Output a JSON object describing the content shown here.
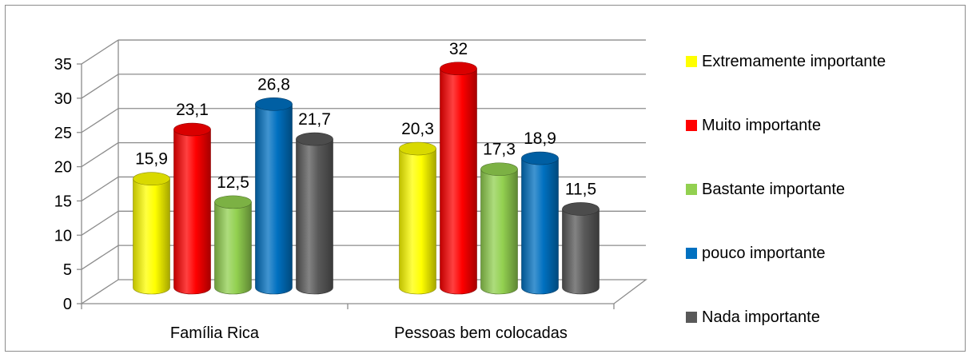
{
  "chart_data": {
    "type": "bar",
    "categories": [
      "Família Rica",
      "Pessoas bem colocadas"
    ],
    "series": [
      {
        "name": "Extremamente importante",
        "values": [
          15.9,
          20.3
        ],
        "labels": [
          "15,9",
          "20,3"
        ],
        "color": "#ffff00"
      },
      {
        "name": "Muito importante",
        "values": [
          23.1,
          32
        ],
        "labels": [
          "23,1",
          "32"
        ],
        "color": "#ff0000"
      },
      {
        "name": "Bastante importante",
        "values": [
          12.5,
          17.3
        ],
        "labels": [
          "12,5",
          "17,3"
        ],
        "color": "#92d050"
      },
      {
        "name": "pouco importante",
        "values": [
          26.8,
          18.9
        ],
        "labels": [
          "26,8",
          "18,9"
        ],
        "color": "#0070c0"
      },
      {
        "name": "Nada importante",
        "values": [
          21.7,
          11.5
        ],
        "labels": [
          "21,7",
          "11,5"
        ],
        "color": "#595959"
      }
    ],
    "yticks": [
      "0",
      "5",
      "10",
      "15",
      "20",
      "25",
      "30",
      "35"
    ],
    "ylim": [
      0,
      35
    ],
    "grid": true,
    "legend_position": "right",
    "style": "3d-cylinder"
  }
}
